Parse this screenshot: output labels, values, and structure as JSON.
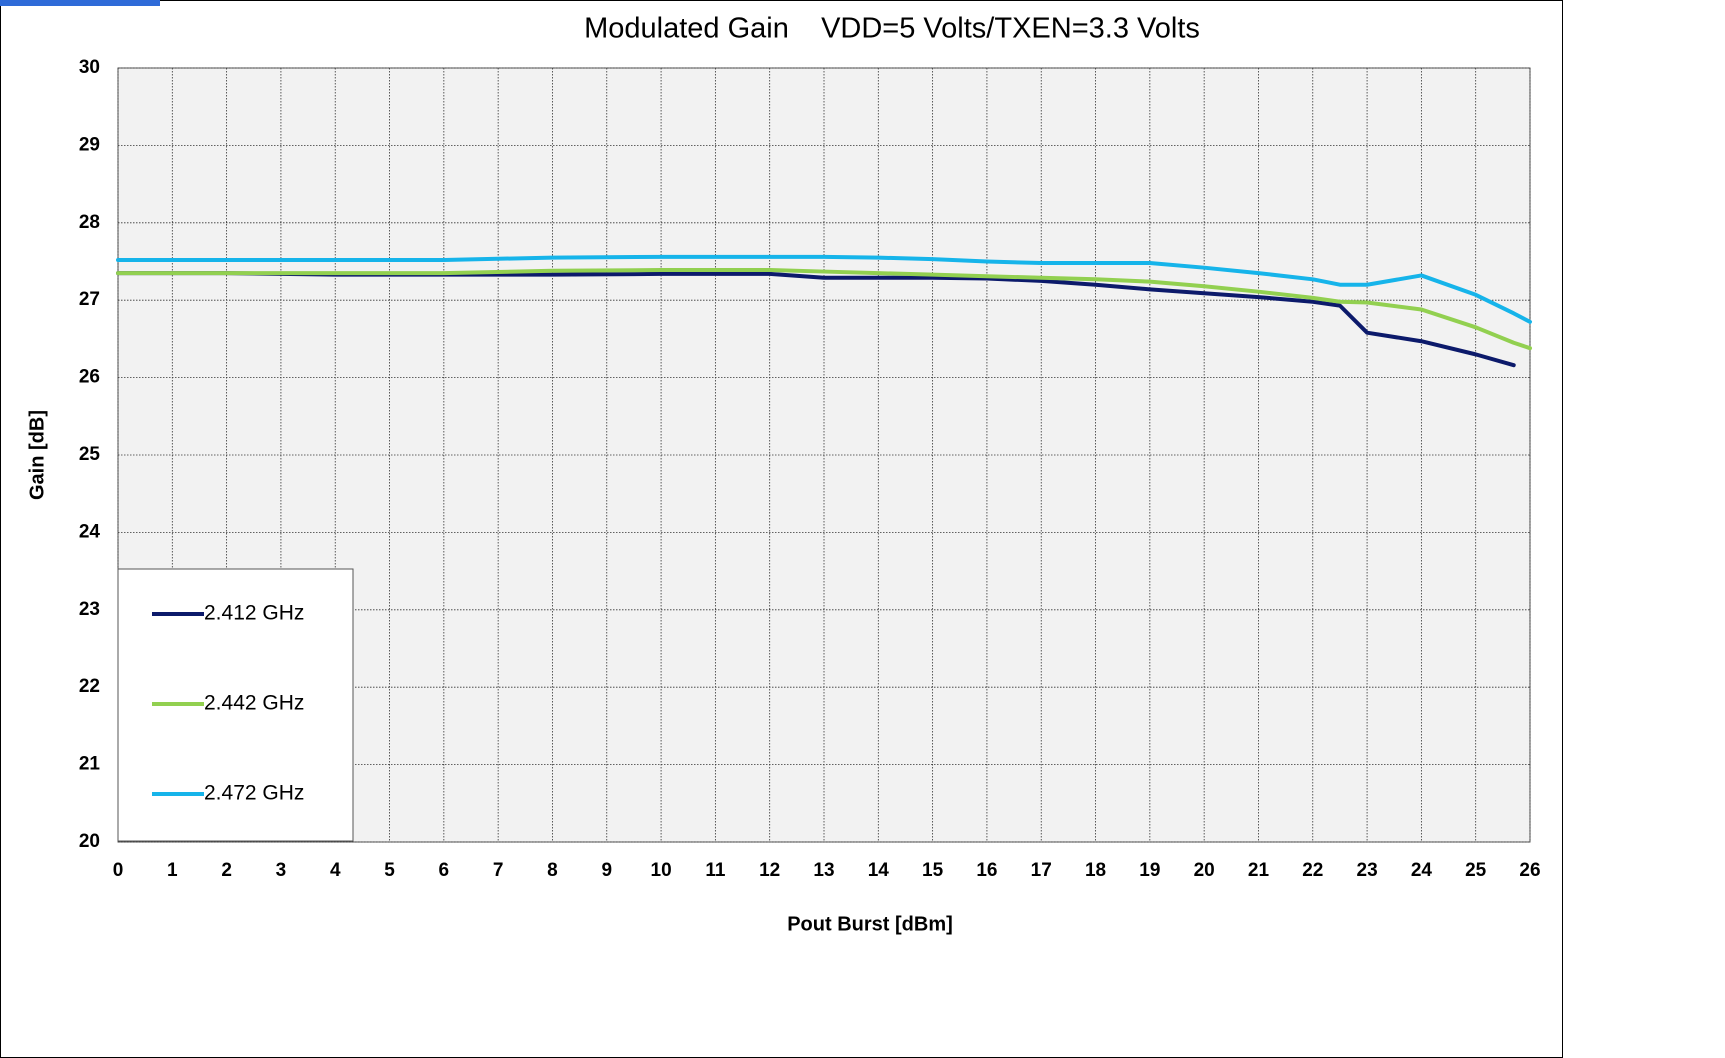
{
  "chart_data": {
    "type": "line",
    "title": "Modulated Gain    VDD=5 Volts/TXEN=3.3 Volts",
    "xlabel": "Pout Burst [dBm]",
    "ylabel": "Gain [dB]",
    "x": [
      0,
      2,
      4,
      6,
      8,
      10,
      12,
      13,
      14,
      15,
      16,
      17,
      18,
      19,
      20,
      21,
      22,
      22.5,
      23,
      24,
      25,
      25.7,
      26
    ],
    "series": [
      {
        "name": "2.412 GHz",
        "color": "#0c1a6b",
        "values": [
          27.35,
          27.35,
          27.33,
          27.33,
          27.33,
          27.34,
          27.34,
          27.29,
          27.29,
          27.29,
          27.28,
          27.25,
          27.2,
          27.14,
          27.09,
          27.04,
          26.98,
          26.93,
          26.58,
          26.47,
          26.3,
          26.16,
          null
        ]
      },
      {
        "name": "2.442 GHz",
        "color": "#92d050",
        "values": [
          27.35,
          27.35,
          27.35,
          27.35,
          27.38,
          27.39,
          27.39,
          27.37,
          27.35,
          27.33,
          27.31,
          27.29,
          27.27,
          27.24,
          27.18,
          27.11,
          27.03,
          26.98,
          26.97,
          26.88,
          26.65,
          26.45,
          26.38
        ]
      },
      {
        "name": "2.472 GHz",
        "color": "#16b4ea",
        "values": [
          27.52,
          27.52,
          27.52,
          27.52,
          27.55,
          27.56,
          27.56,
          27.56,
          27.55,
          27.53,
          27.5,
          27.48,
          27.48,
          27.48,
          27.42,
          27.35,
          27.27,
          27.2,
          27.2,
          27.32,
          27.07,
          26.83,
          26.72
        ]
      }
    ],
    "xlim": [
      0,
      26
    ],
    "xticks": [
      0,
      1,
      2,
      3,
      4,
      5,
      6,
      7,
      8,
      9,
      10,
      11,
      12,
      13,
      14,
      15,
      16,
      17,
      18,
      19,
      20,
      21,
      22,
      23,
      24,
      25,
      26
    ],
    "ylim": [
      20,
      30
    ],
    "yticks": [
      20,
      21,
      22,
      23,
      24,
      25,
      26,
      27,
      28,
      29,
      30
    ],
    "grid": true,
    "legend": "lower left"
  }
}
